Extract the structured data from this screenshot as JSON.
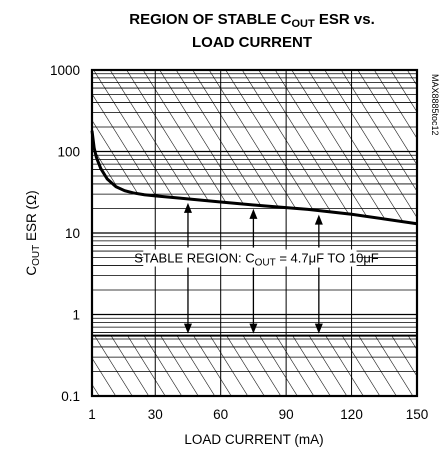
{
  "chart_data": {
    "type": "line",
    "title_line1_pre": "REGION OF STABLE C",
    "title_line1_sub": "OUT",
    "title_line1_post": " ESR vs.",
    "title_line2": "LOAD CURRENT",
    "xlabel": "LOAD CURRENT (mA)",
    "ylabel_pre": "C",
    "ylabel_sub": "OUT",
    "ylabel_post": " ESR (Ω)",
    "x_scale": "linear",
    "y_scale": "log",
    "xlim": [
      1,
      150
    ],
    "ylim": [
      0.1,
      1000
    ],
    "x_ticks": [
      1,
      30,
      60,
      90,
      120,
      150
    ],
    "y_ticks": [
      0.1,
      1,
      10,
      100,
      1000
    ],
    "x_tick_labels": [
      "1",
      "30",
      "60",
      "90",
      "120",
      "150"
    ],
    "y_tick_labels": [
      "0.1",
      "1",
      "10",
      "100",
      "1000"
    ],
    "grid": true,
    "series": [
      {
        "x": [
          1,
          2,
          3,
          5,
          8,
          12,
          16,
          20,
          25,
          30,
          40,
          60,
          80,
          100,
          120,
          150
        ],
        "y": [
          180,
          110,
          85,
          62,
          46,
          37,
          33,
          31,
          29.5,
          28.5,
          27,
          24,
          21.5,
          19.5,
          17,
          13
        ]
      }
    ],
    "lower_bound_esr": 0.55,
    "annotation": {
      "pre": "STABLE REGION: C",
      "sub": "OUT",
      "post": " = 4.7μF TO 10μF",
      "y": 5
    },
    "arrows_x": [
      45,
      75,
      105
    ],
    "watermark": "MAX8885toc12"
  }
}
